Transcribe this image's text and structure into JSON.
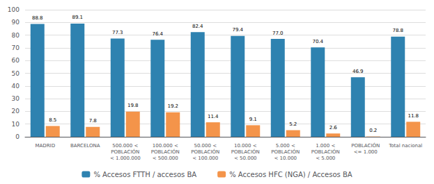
{
  "chart_data": {
    "type": "bar",
    "categories": [
      "MADRID",
      "BARCELONA",
      "500.000 <\nPOBLACIÓN\n< 1.000.000",
      "100.000 <\nPOBLACIÓN\n< 500.000",
      "50.000 <\nPOBLACIÓN\n< 100.000",
      "10.000 <\nPOBLACIÓN\n< 50.000",
      "5.000 <\nPOBLACIÓN\n< 10.000",
      "1.000 <\nPOBLACIÓN\n< 5.000",
      "POBLACIÓN\n<= 1.000",
      "Total nacional"
    ],
    "series": [
      {
        "name": "% Accesos FTTH / accesos BA",
        "color": "#2e82b0",
        "values": [
          88.8,
          89.1,
          77.3,
          76.4,
          82.4,
          79.4,
          77.0,
          70.4,
          46.9,
          78.8
        ],
        "value_labels": [
          "88.8",
          "89.1",
          "77.3",
          "76.4",
          "82.4",
          "79.4",
          "77.0",
          "70.4",
          "46.9",
          "78.8"
        ]
      },
      {
        "name": "% Accesos HFC (NGA) / Accesos BA",
        "color": "#f4944a",
        "values": [
          8.5,
          7.8,
          19.8,
          19.2,
          11.4,
          9.1,
          5.2,
          2.6,
          0.2,
          11.8
        ],
        "value_labels": [
          "8.5",
          "7.8",
          "19.8",
          "19.2",
          "11.4",
          "9.1",
          "5.2",
          "2.6",
          "0.2",
          "11.8"
        ]
      }
    ],
    "ylim": [
      0,
      100
    ],
    "yticks": [
      0,
      10,
      20,
      30,
      40,
      50,
      60,
      70,
      80,
      90,
      100
    ],
    "grid": true,
    "data_labels": true,
    "legend": "bottom"
  }
}
